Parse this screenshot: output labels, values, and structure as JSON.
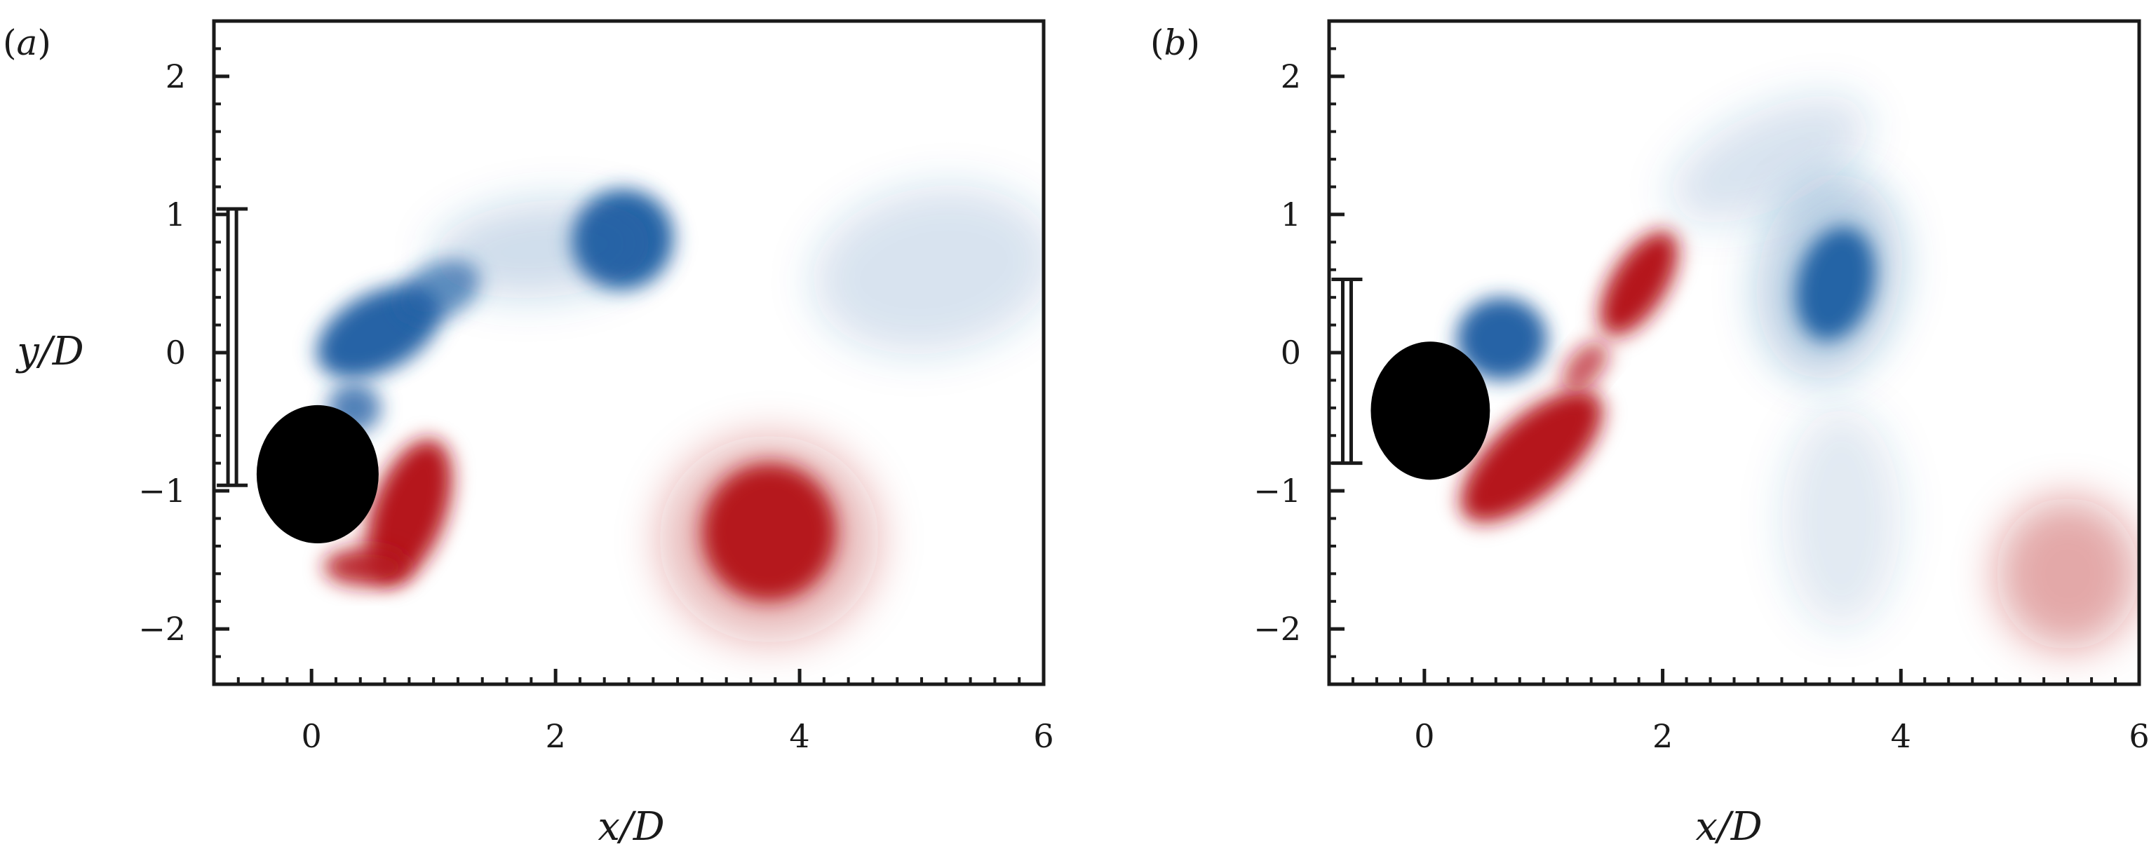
{
  "figure": {
    "panels": [
      {
        "id": "a",
        "label": "(a)",
        "letter": "a",
        "show_ylabel": true
      },
      {
        "id": "b",
        "label": "(b)",
        "letter": "b",
        "show_ylabel": false
      }
    ],
    "xlabel": "x/D",
    "ylabel": "y/D",
    "colors": {
      "positive_vorticity": "#b5161f",
      "negative_vorticity": "#2563a6",
      "cylinder": "#000000",
      "frame": "#1a1a1a"
    }
  },
  "chart_data": [
    {
      "type": "heatmap",
      "panel": "(a)",
      "xlabel": "x/D",
      "ylabel": "y/D",
      "xlim": [
        -0.8,
        6.0
      ],
      "ylim": [
        -2.4,
        2.4
      ],
      "xticks": [
        0,
        2,
        4,
        6
      ],
      "xtick_labels": [
        "0",
        "2",
        "4",
        "6"
      ],
      "yticks": [
        2,
        1,
        0,
        -1,
        -2
      ],
      "ytick_labels": [
        "2",
        "1",
        "0",
        "−1",
        "−2"
      ],
      "cylinder": {
        "x": 0.05,
        "y": -0.88,
        "diameter": 1.0
      },
      "bracket": {
        "x": -0.65,
        "y_top": 1.04,
        "y_bottom": -0.96
      },
      "vortices": [
        {
          "sign": "negative",
          "x": 0.55,
          "y": 0.15,
          "rx": 0.55,
          "ry": 0.28,
          "angle": -28,
          "intensity": 1.0
        },
        {
          "sign": "negative",
          "x": 1.05,
          "y": 0.45,
          "rx": 0.35,
          "ry": 0.2,
          "angle": -25,
          "intensity": 0.7
        },
        {
          "sign": "negative",
          "x": 2.55,
          "y": 0.82,
          "rx": 0.42,
          "ry": 0.36,
          "angle": -30,
          "intensity": 1.0
        },
        {
          "sign": "negative",
          "x": 1.9,
          "y": 0.75,
          "rx": 0.9,
          "ry": 0.35,
          "angle": -5,
          "intensity": 0.22
        },
        {
          "sign": "negative",
          "x": 5.1,
          "y": 0.6,
          "rx": 1.0,
          "ry": 0.6,
          "angle": -10,
          "intensity": 0.18
        },
        {
          "sign": "negative",
          "x": 0.35,
          "y": -0.4,
          "rx": 0.22,
          "ry": 0.18,
          "angle": 0,
          "intensity": 0.8
        },
        {
          "sign": "positive",
          "x": 0.8,
          "y": -1.15,
          "rx": 0.3,
          "ry": 0.55,
          "angle": 20,
          "intensity": 1.0
        },
        {
          "sign": "positive",
          "x": 0.45,
          "y": -1.55,
          "rx": 0.35,
          "ry": 0.14,
          "angle": 0,
          "intensity": 0.9
        },
        {
          "sign": "positive",
          "x": 3.75,
          "y": -1.3,
          "rx": 0.55,
          "ry": 0.5,
          "angle": 10,
          "intensity": 1.0
        },
        {
          "sign": "positive",
          "x": 3.75,
          "y": -1.35,
          "rx": 0.9,
          "ry": 0.75,
          "angle": 0,
          "intensity": 0.3
        }
      ]
    },
    {
      "type": "heatmap",
      "panel": "(b)",
      "xlabel": "x/D",
      "ylabel": "y/D",
      "xlim": [
        -0.8,
        6.0
      ],
      "ylim": [
        -2.4,
        2.4
      ],
      "xticks": [
        0,
        2,
        4,
        6
      ],
      "xtick_labels": [
        "0",
        "2",
        "4",
        "6"
      ],
      "yticks": [
        2,
        1,
        0,
        -1,
        -2
      ],
      "ytick_labels": [
        "2",
        "1",
        "0",
        "−1",
        "−2"
      ],
      "cylinder": {
        "x": 0.05,
        "y": -0.42,
        "diameter": 1.0
      },
      "bracket": {
        "x": -0.65,
        "y_top": 0.53,
        "y_bottom": -0.8
      },
      "vortices": [
        {
          "sign": "negative",
          "x": 0.65,
          "y": 0.1,
          "rx": 0.38,
          "ry": 0.3,
          "angle": 0,
          "intensity": 1.0
        },
        {
          "sign": "negative",
          "x": 3.45,
          "y": 0.5,
          "rx": 0.32,
          "ry": 0.42,
          "angle": 15,
          "intensity": 1.0
        },
        {
          "sign": "negative",
          "x": 3.4,
          "y": 0.55,
          "rx": 0.6,
          "ry": 0.75,
          "angle": 10,
          "intensity": 0.3
        },
        {
          "sign": "negative",
          "x": 2.9,
          "y": 1.4,
          "rx": 0.9,
          "ry": 0.35,
          "angle": -25,
          "intensity": 0.18
        },
        {
          "sign": "negative",
          "x": 3.5,
          "y": -1.2,
          "rx": 0.5,
          "ry": 0.8,
          "angle": 0,
          "intensity": 0.14
        },
        {
          "sign": "positive",
          "x": 0.9,
          "y": -0.75,
          "rx": 0.75,
          "ry": 0.28,
          "angle": -42,
          "intensity": 1.0
        },
        {
          "sign": "positive",
          "x": 1.8,
          "y": 0.5,
          "rx": 0.5,
          "ry": 0.2,
          "angle": -58,
          "intensity": 1.0
        },
        {
          "sign": "positive",
          "x": 1.35,
          "y": -0.1,
          "rx": 0.25,
          "ry": 0.12,
          "angle": -50,
          "intensity": 0.7
        },
        {
          "sign": "positive",
          "x": 5.4,
          "y": -1.6,
          "rx": 0.6,
          "ry": 0.55,
          "angle": 0,
          "intensity": 0.38
        }
      ]
    }
  ]
}
